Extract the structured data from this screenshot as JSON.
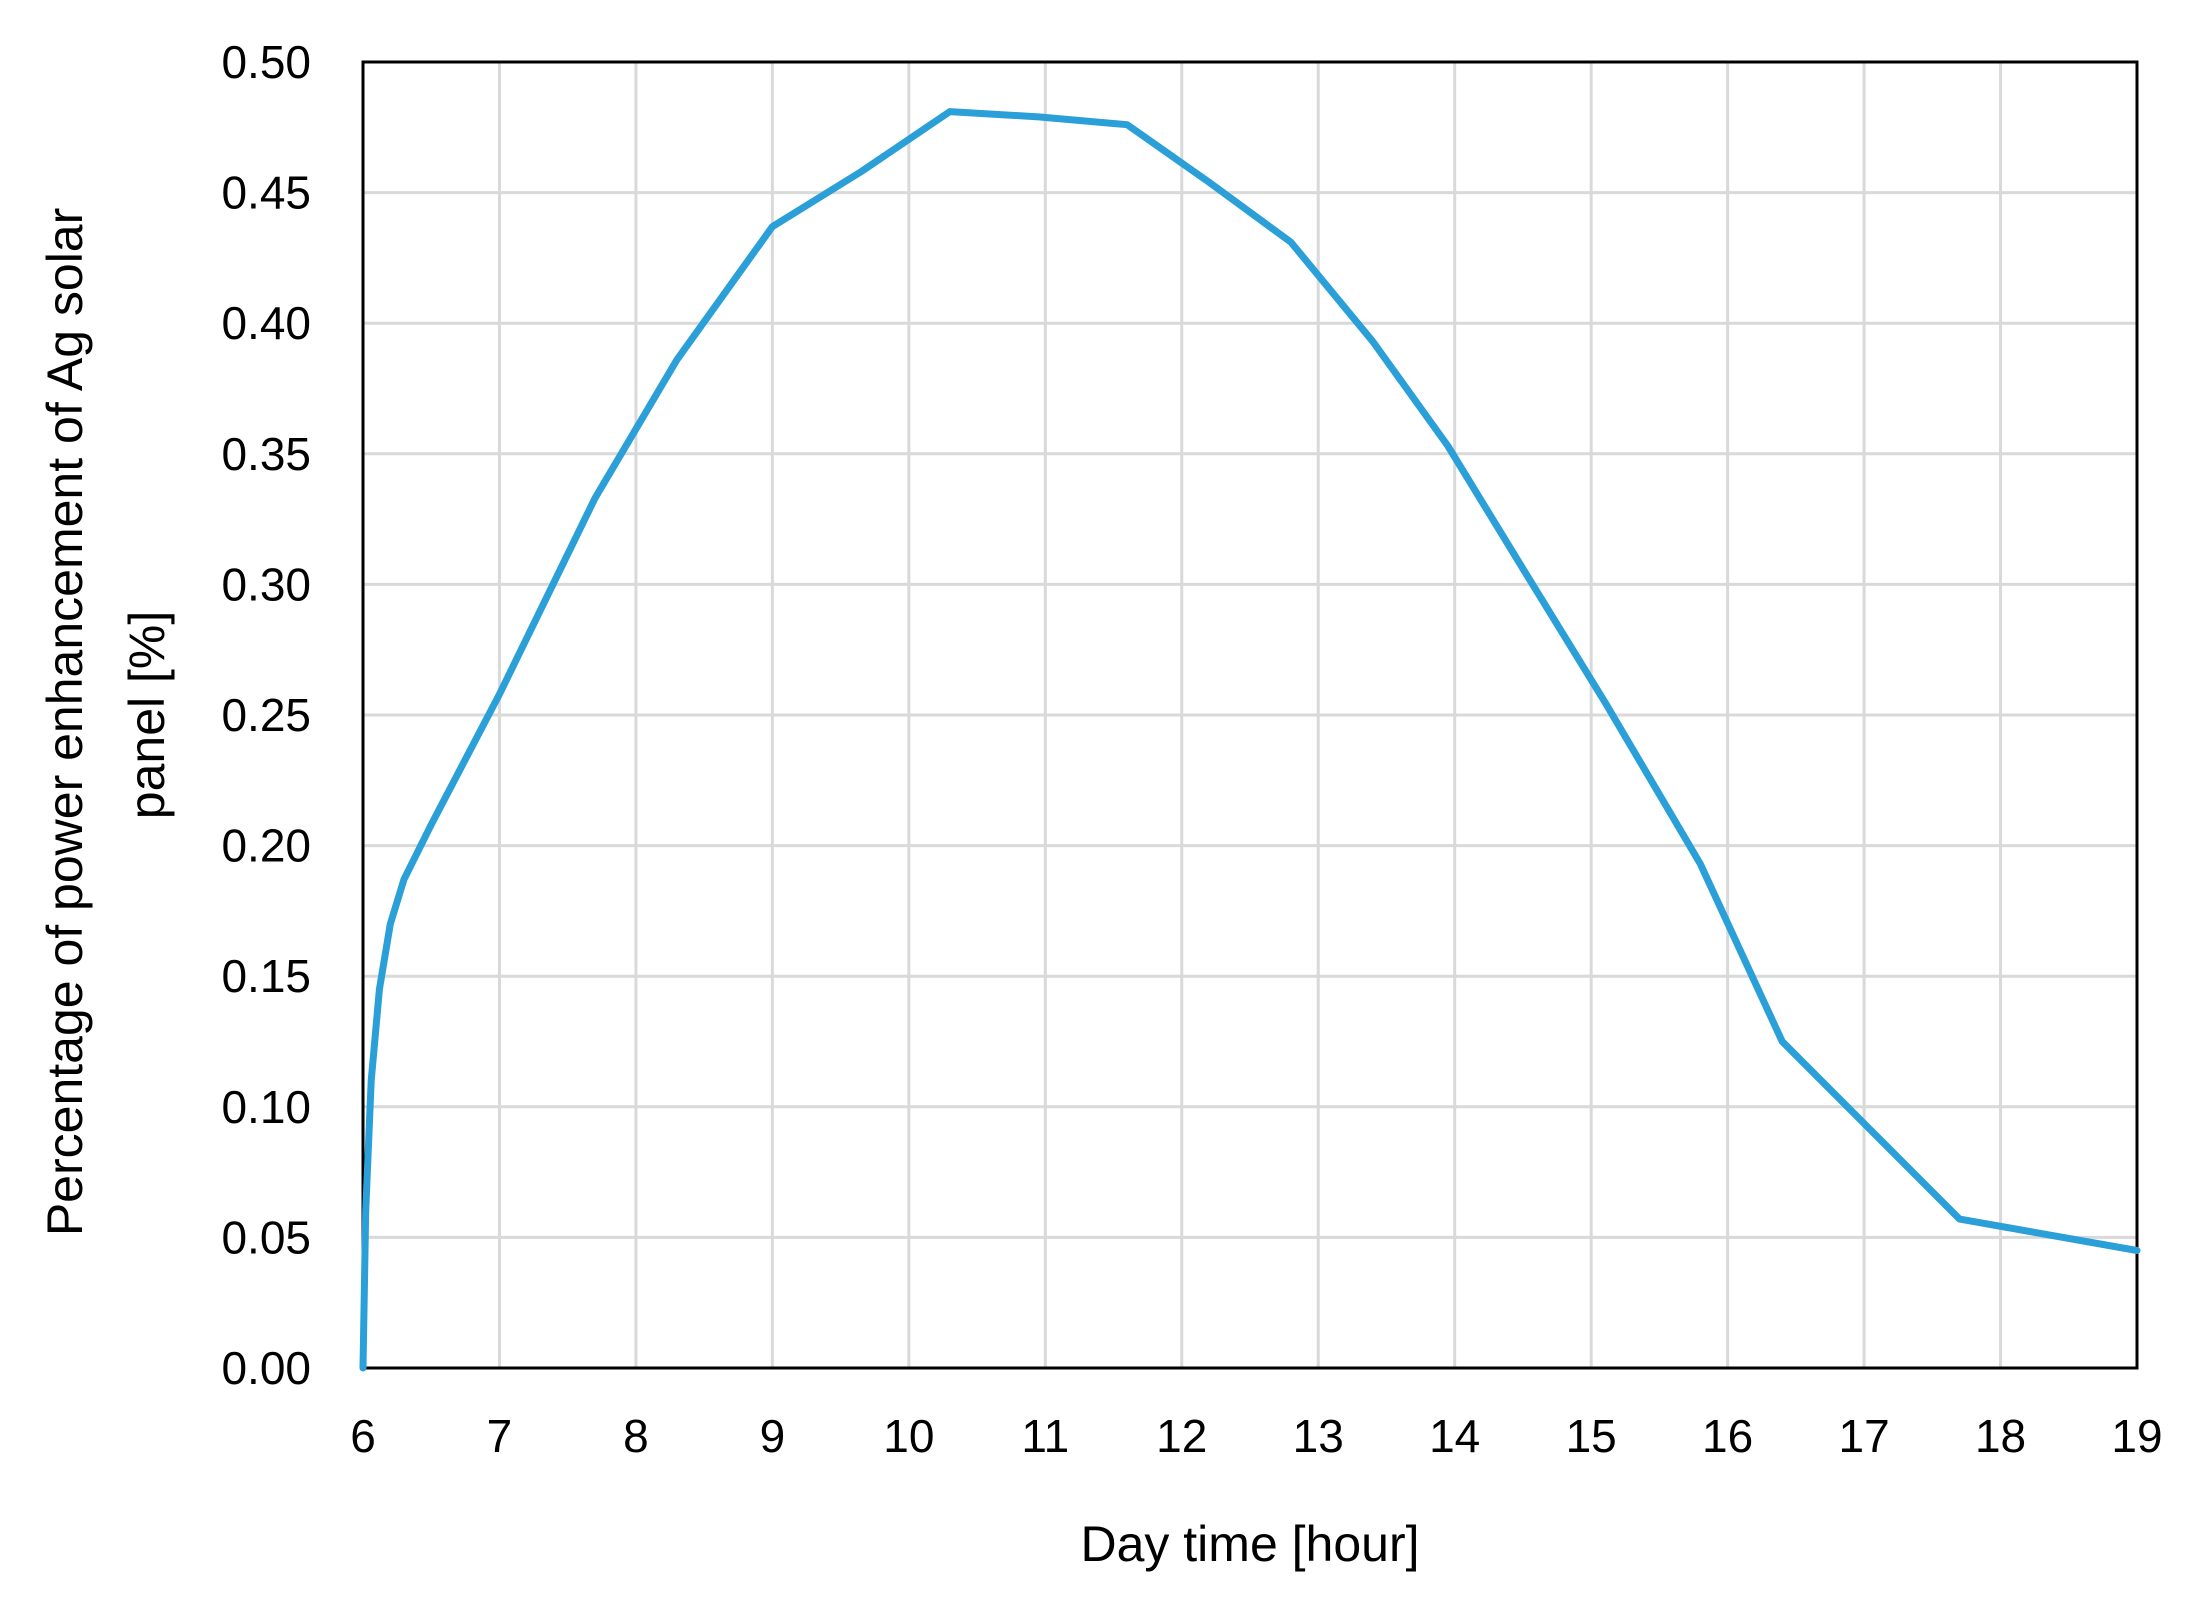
{
  "chart_data": {
    "type": "line",
    "title": "",
    "xlabel": "Day time [hour]",
    "ylabel_lines": [
      "Percentage of power enhancement of Ag solar",
      "panel [%]"
    ],
    "xlim": [
      6,
      19
    ],
    "ylim": [
      0,
      0.5
    ],
    "x_ticks": [
      "6",
      "7",
      "8",
      "9",
      "10",
      "11",
      "12",
      "13",
      "14",
      "15",
      "16",
      "17",
      "18",
      "19"
    ],
    "y_ticks": [
      "0.00",
      "0.05",
      "0.10",
      "0.15",
      "0.20",
      "0.25",
      "0.30",
      "0.35",
      "0.40",
      "0.45",
      "0.50"
    ],
    "grid": true,
    "legend": "none",
    "series": [
      {
        "color": "#2a9fd8",
        "x": [
          6.0,
          6.02,
          6.06,
          6.12,
          6.2,
          6.3,
          6.5,
          7.0,
          7.7,
          8.3,
          9.0,
          9.65,
          10.3,
          10.95,
          11.6,
          12.2,
          12.8,
          13.4,
          13.95,
          14.5,
          15.1,
          15.8,
          16.4,
          17.05,
          17.7,
          18.35,
          19.0
        ],
        "y": [
          0.0,
          0.06,
          0.11,
          0.145,
          0.17,
          0.187,
          0.208,
          0.258,
          0.333,
          0.386,
          0.437,
          0.458,
          0.481,
          0.479,
          0.476,
          0.454,
          0.431,
          0.393,
          0.353,
          0.306,
          0.255,
          0.193,
          0.125,
          0.091,
          0.057,
          0.051,
          0.045
        ]
      }
    ]
  }
}
